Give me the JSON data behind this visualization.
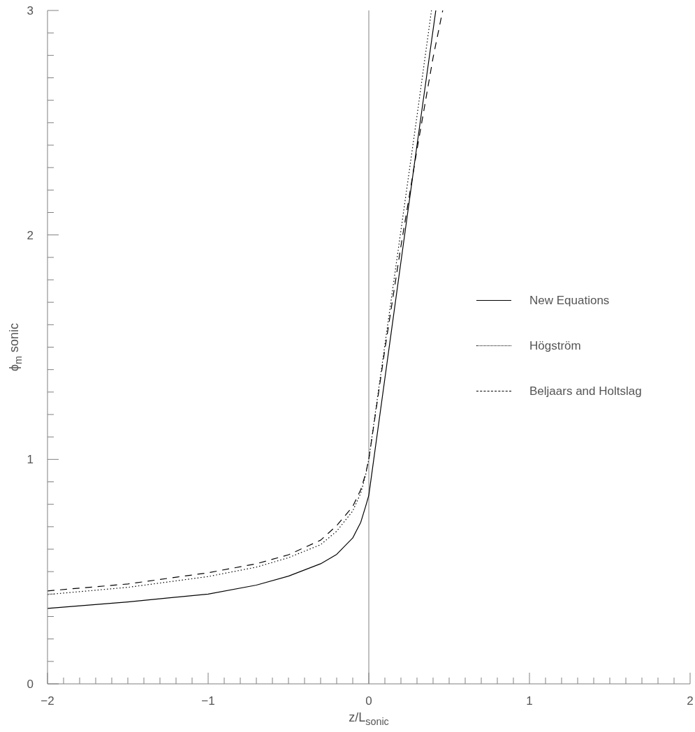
{
  "chart_data": {
    "type": "line",
    "xlabel": "z/L$_{sonic}$",
    "ylabel": "ϕ$_{m}$ sonic",
    "xlim": [
      -2,
      2
    ],
    "ylim": [
      0,
      3
    ],
    "xticks": [
      -2,
      {
        "value": -1.9,
        "label": null
      },
      {
        "value": -1.8,
        "label": null
      },
      {
        "value": -1.7,
        "label": null
      },
      {
        "value": -1.6,
        "label": null
      },
      {
        "value": -1.5,
        "label": null
      },
      {
        "value": -1.4,
        "label": null
      },
      {
        "value": -1.3,
        "label": null
      },
      {
        "value": -1.2,
        "label": null
      },
      {
        "value": -1.1,
        "label": null
      },
      {
        "value": -1,
        "label": "−1"
      },
      {
        "value": -0.9,
        "label": null
      },
      {
        "value": -0.8,
        "label": null
      },
      {
        "value": -0.7,
        "label": null
      },
      {
        "value": -0.6,
        "label": null
      },
      {
        "value": -0.5,
        "label": null
      },
      {
        "value": -0.4,
        "label": null
      },
      {
        "value": -0.3,
        "label": null
      },
      {
        "value": -0.2,
        "label": null
      },
      {
        "value": -0.1,
        "label": null
      },
      0,
      {
        "value": 0.1,
        "label": null
      },
      {
        "value": 0.2,
        "label": null
      },
      {
        "value": 0.3,
        "label": null
      },
      {
        "value": 0.4,
        "label": null
      },
      {
        "value": 0.5,
        "label": null
      },
      {
        "value": 0.6,
        "label": null
      },
      {
        "value": 0.7,
        "label": null
      },
      {
        "value": 0.8,
        "label": null
      },
      {
        "value": 0.9,
        "label": null
      },
      1,
      {
        "value": 1.1,
        "label": null
      },
      {
        "value": 1.2,
        "label": null
      },
      {
        "value": 1.3,
        "label": null
      },
      {
        "value": 1.4,
        "label": null
      },
      {
        "value": 1.5,
        "label": null
      },
      {
        "value": 1.6,
        "label": null
      },
      {
        "value": 1.7,
        "label": null
      },
      {
        "value": 1.8,
        "label": null
      },
      {
        "value": 1.9,
        "label": null
      },
      2
    ],
    "yticks": [
      0,
      {
        "value": 0.1,
        "label": null
      },
      {
        "value": 0.2,
        "label": null
      },
      {
        "value": 0.3,
        "label": null
      },
      {
        "value": 0.4,
        "label": null
      },
      {
        "value": 0.5,
        "label": null
      },
      {
        "value": 0.6,
        "label": null
      },
      {
        "value": 0.7,
        "label": null
      },
      {
        "value": 0.8,
        "label": null
      },
      {
        "value": 0.9,
        "label": null
      },
      1,
      {
        "value": 1.1,
        "label": null
      },
      {
        "value": 1.2,
        "label": null
      },
      {
        "value": 1.3,
        "label": null
      },
      {
        "value": 1.4,
        "label": null
      },
      {
        "value": 1.5,
        "label": null
      },
      {
        "value": 1.6,
        "label": null
      },
      {
        "value": 1.7,
        "label": null
      },
      {
        "value": 1.8,
        "label": null
      },
      {
        "value": 1.9,
        "label": null
      },
      2,
      {
        "value": 2.1,
        "label": null
      },
      {
        "value": 2.2,
        "label": null
      },
      {
        "value": 2.3,
        "label": null
      },
      {
        "value": 2.4,
        "label": null
      },
      {
        "value": 2.5,
        "label": null
      },
      {
        "value": 2.6,
        "label": null
      },
      {
        "value": 2.7,
        "label": null
      },
      {
        "value": 2.8,
        "label": null
      },
      {
        "value": 2.9,
        "label": null
      },
      3
    ],
    "grid": false,
    "legend": "right",
    "marker": "none",
    "ref_lines": [
      {
        "axis": "x",
        "value": 0,
        "color": "#808080",
        "line_style": "solid"
      }
    ],
    "series": [
      {
        "name": "New Equations",
        "color": "#000000",
        "line_style": "solid",
        "x": [
          -2,
          -1.5,
          -1,
          -0.7,
          -0.5,
          -0.3,
          -0.2,
          -0.1,
          -0.05,
          -0.02,
          0,
          0.1,
          0.2,
          0.3,
          0.417
        ],
        "values": [
          0.336,
          0.365,
          0.4,
          0.44,
          0.48,
          0.535,
          0.577,
          0.65,
          0.72,
          0.79,
          0.84,
          1.36,
          1.88,
          2.4,
          3.0
        ]
      },
      {
        "name": "Högström",
        "color": "#000000",
        "line_style": "dotted",
        "x": [
          -2,
          -1.5,
          -1,
          -0.7,
          -0.5,
          -0.3,
          -0.2,
          -0.1,
          -0.05,
          -0.02,
          0,
          0.1,
          0.2,
          0.3,
          0.39
        ],
        "values": [
          0.398,
          0.43,
          0.478,
          0.52,
          0.562,
          0.62,
          0.68,
          0.77,
          0.85,
          0.93,
          1.0,
          1.51,
          2.02,
          2.53,
          3.0
        ]
      },
      {
        "name": "Beljaars and Holtslag",
        "color": "#000000",
        "line_style": "dashed",
        "x": [
          -2,
          -1.5,
          -1,
          -0.7,
          -0.5,
          -0.3,
          -0.2,
          -0.1,
          -0.05,
          -0.02,
          0,
          0.1,
          0.2,
          0.3,
          0.4,
          0.46
        ],
        "values": [
          0.414,
          0.445,
          0.495,
          0.535,
          0.575,
          0.64,
          0.705,
          0.79,
          0.865,
          0.935,
          1.0,
          1.49,
          1.95,
          2.38,
          2.79,
          3.0
        ]
      }
    ]
  }
}
